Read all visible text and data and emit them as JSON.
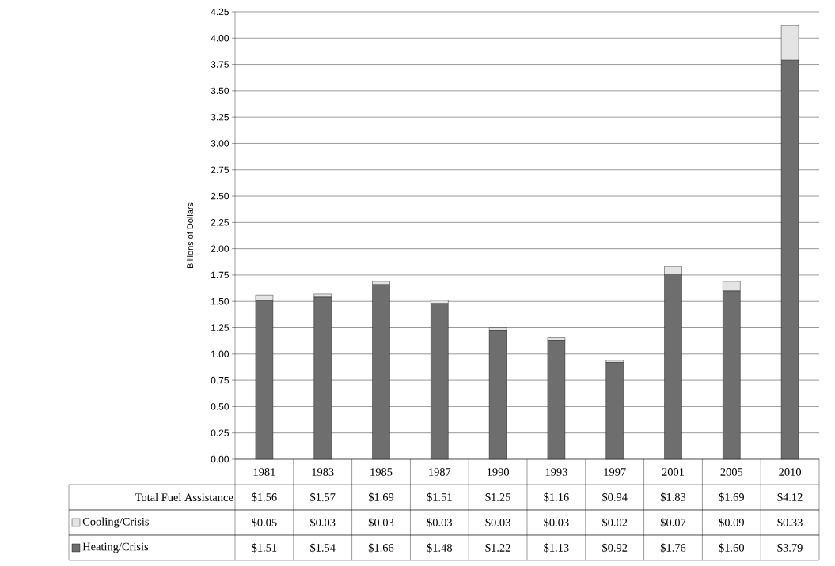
{
  "chart_data": {
    "type": "bar",
    "stacked": true,
    "ylabel": "Billions of Dollars",
    "categories": [
      "1981",
      "1983",
      "1985",
      "1987",
      "1990",
      "1993",
      "1997",
      "2001",
      "2005",
      "2010"
    ],
    "series": [
      {
        "name": "Heating/Crisis",
        "color": "#6e6e6e",
        "values": [
          1.51,
          1.54,
          1.66,
          1.48,
          1.22,
          1.13,
          0.92,
          1.76,
          1.6,
          3.79
        ],
        "value_labels": [
          "$1.51",
          "$1.54",
          "$1.66",
          "$1.48",
          "$1.22",
          "$1.13",
          "$0.92",
          "$1.76",
          "$1.60",
          "$3.79"
        ]
      },
      {
        "name": "Cooling/Crisis",
        "color": "#e4e4e4",
        "values": [
          0.05,
          0.03,
          0.03,
          0.03,
          0.03,
          0.03,
          0.02,
          0.07,
          0.09,
          0.33
        ],
        "value_labels": [
          "$0.05",
          "$0.03",
          "$0.03",
          "$0.03",
          "$0.03",
          "$0.03",
          "$0.02",
          "$0.07",
          "$0.09",
          "$0.33"
        ]
      }
    ],
    "totals": [
      "$1.56",
      "$1.57",
      "$1.69",
      "$1.51",
      "$1.25",
      "$1.16",
      "$0.94",
      "$1.83",
      "$1.69",
      "$4.12"
    ],
    "annotations": [
      "Total Fuel Assistance"
    ],
    "ylim": [
      0,
      4.25
    ],
    "yticks": [
      {
        "value": 0,
        "label": "0.00"
      },
      {
        "value": 0.25,
        "label": "0.25"
      },
      {
        "value": 0.5,
        "label": "0.50"
      },
      {
        "value": 0.75,
        "label": "0.75"
      },
      {
        "value": 1,
        "label": "1.00"
      },
      {
        "value": 1.25,
        "label": "1.25"
      },
      {
        "value": 1.5,
        "label": "1.50"
      },
      {
        "value": 1.75,
        "label": "1.75"
      },
      {
        "value": 2,
        "label": "2.00"
      },
      {
        "value": 2.25,
        "label": "2.25"
      },
      {
        "value": 2.5,
        "label": "2.50"
      },
      {
        "value": 2.75,
        "label": "2.75"
      },
      {
        "value": 3,
        "label": "3.00"
      },
      {
        "value": 3.25,
        "label": "3.25"
      },
      {
        "value": 3.5,
        "label": "3.50"
      },
      {
        "value": 3.75,
        "label": "3.75"
      },
      {
        "value": 4,
        "label": "4.00"
      },
      {
        "value": 4.25,
        "label": "4.25"
      }
    ],
    "grid": "y",
    "legend": "bottom"
  }
}
